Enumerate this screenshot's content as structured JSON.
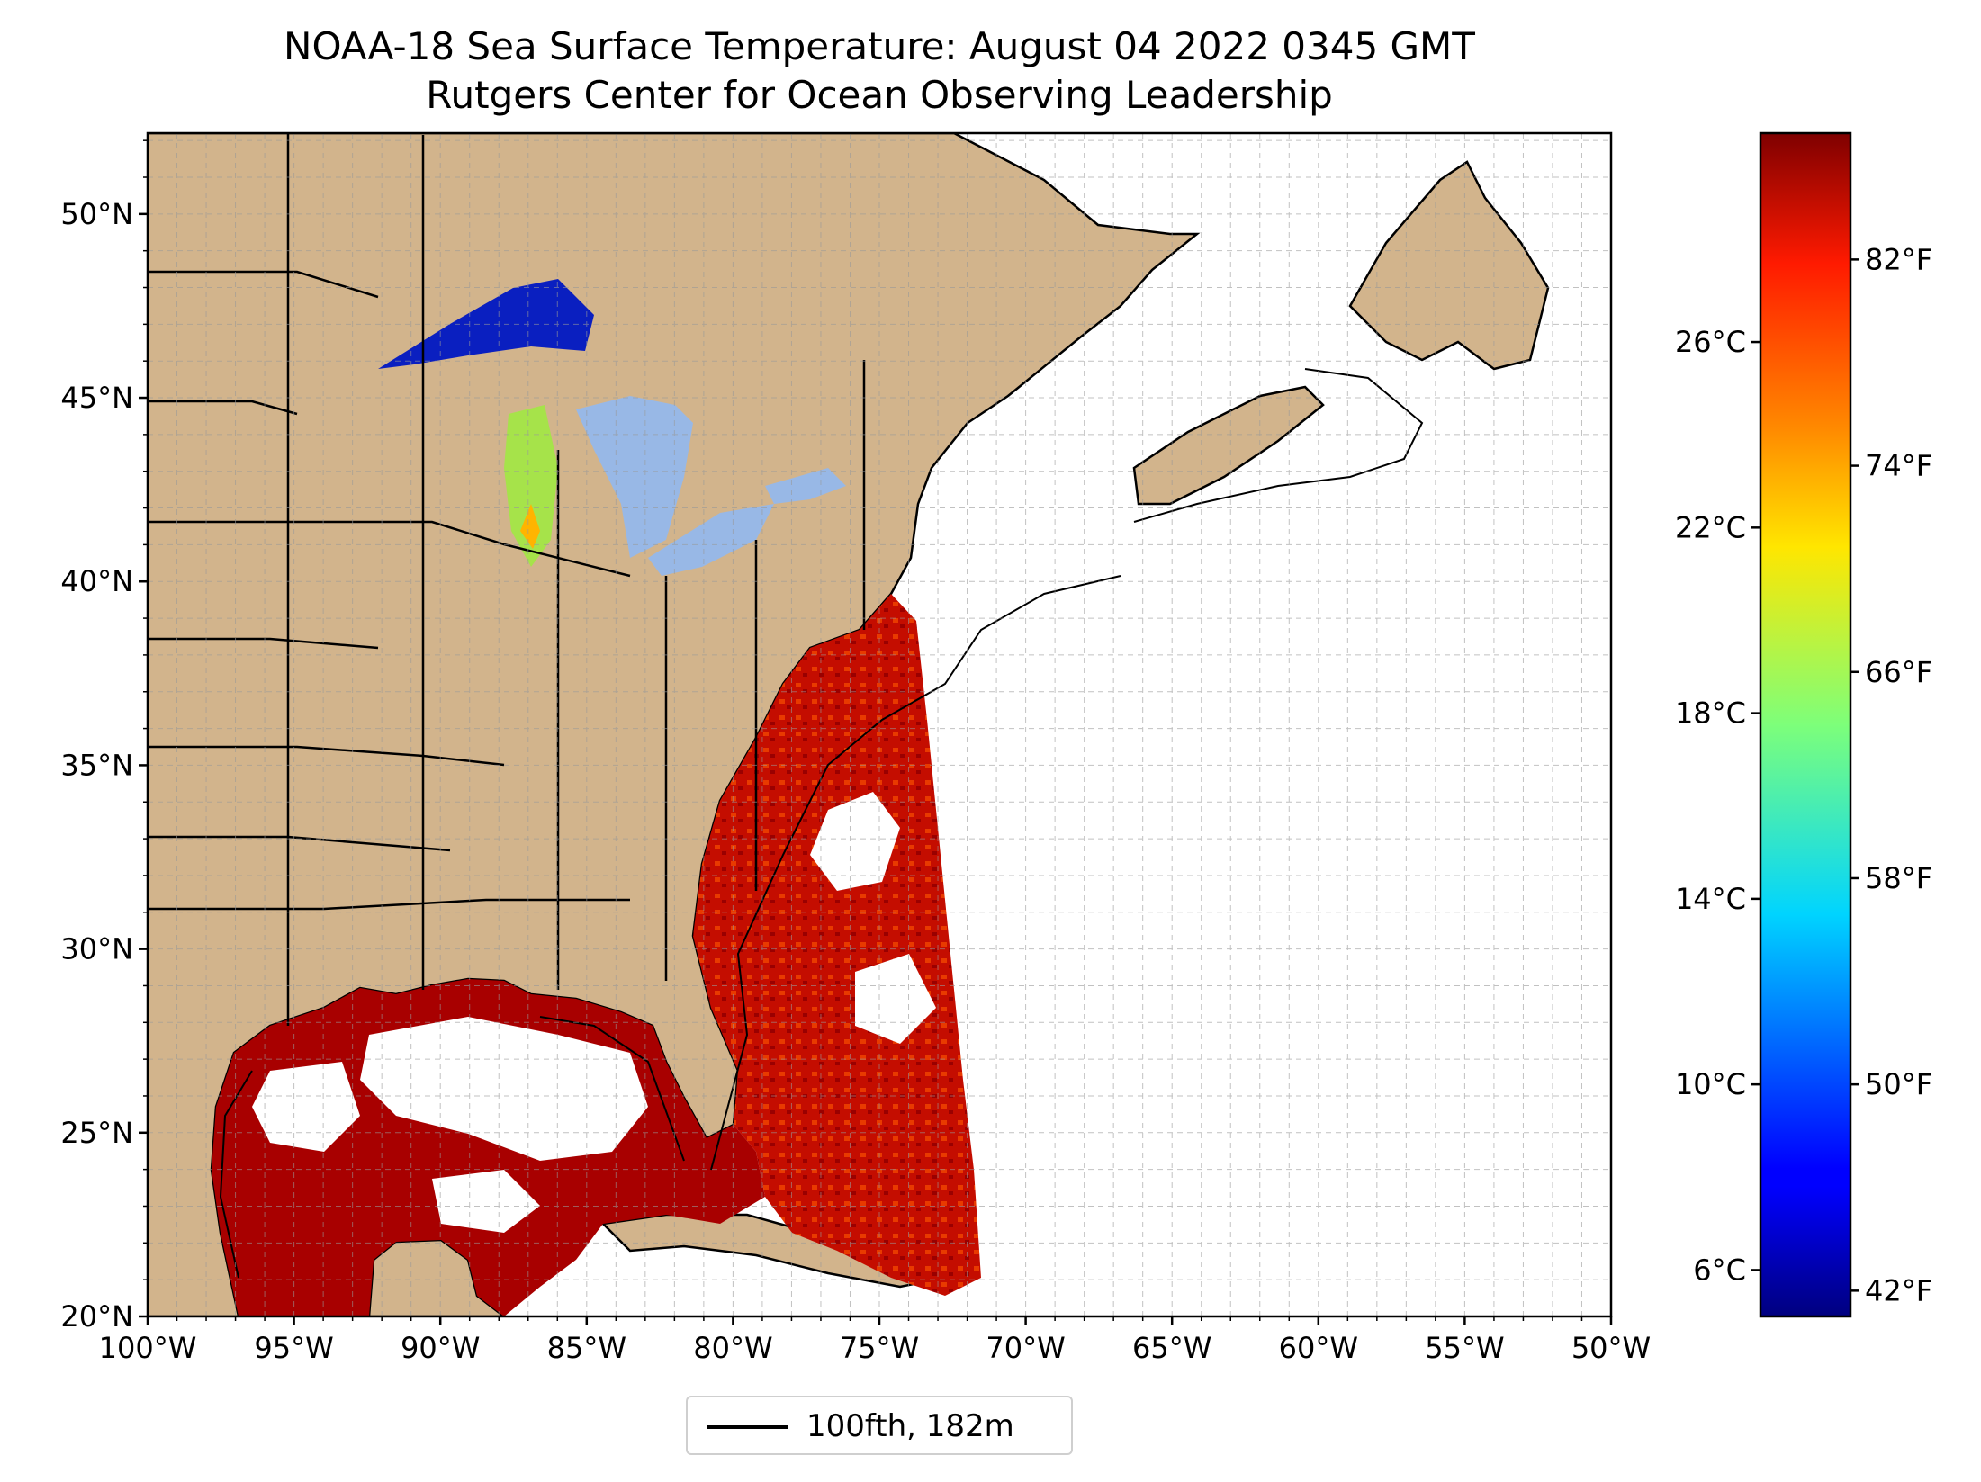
{
  "title": "NOAA-18 Sea Surface Temperature: August 04 2022 0345 GMT",
  "subtitle": "Rutgers Center for Ocean Observing Leadership",
  "map": {
    "lon_range": [
      -100,
      -50
    ],
    "lat_range": [
      20,
      52.2
    ],
    "lat_ticks": [
      "50°N",
      "45°N",
      "40°N",
      "35°N",
      "30°N",
      "25°N",
      "20°N"
    ],
    "lon_ticks": [
      "100°W",
      "95°W",
      "90°W",
      "85°W",
      "80°W",
      "75°W",
      "70°W",
      "65°W",
      "60°W",
      "55°W",
      "50°W"
    ],
    "land_color": "#d2b48c",
    "lake_color": "#98b8e6",
    "gridlines": true
  },
  "colorbar": {
    "colormap": "jet",
    "celsius_ticks": [
      "26°C",
      "22°C",
      "18°C",
      "14°C",
      "10°C",
      "6°C"
    ],
    "fahrenheit_ticks": [
      "82°F",
      "74°F",
      "66°F",
      "58°F",
      "50°F",
      "42°F"
    ]
  },
  "legend": {
    "label": "100fth, 182m",
    "line_color": "#000000"
  }
}
